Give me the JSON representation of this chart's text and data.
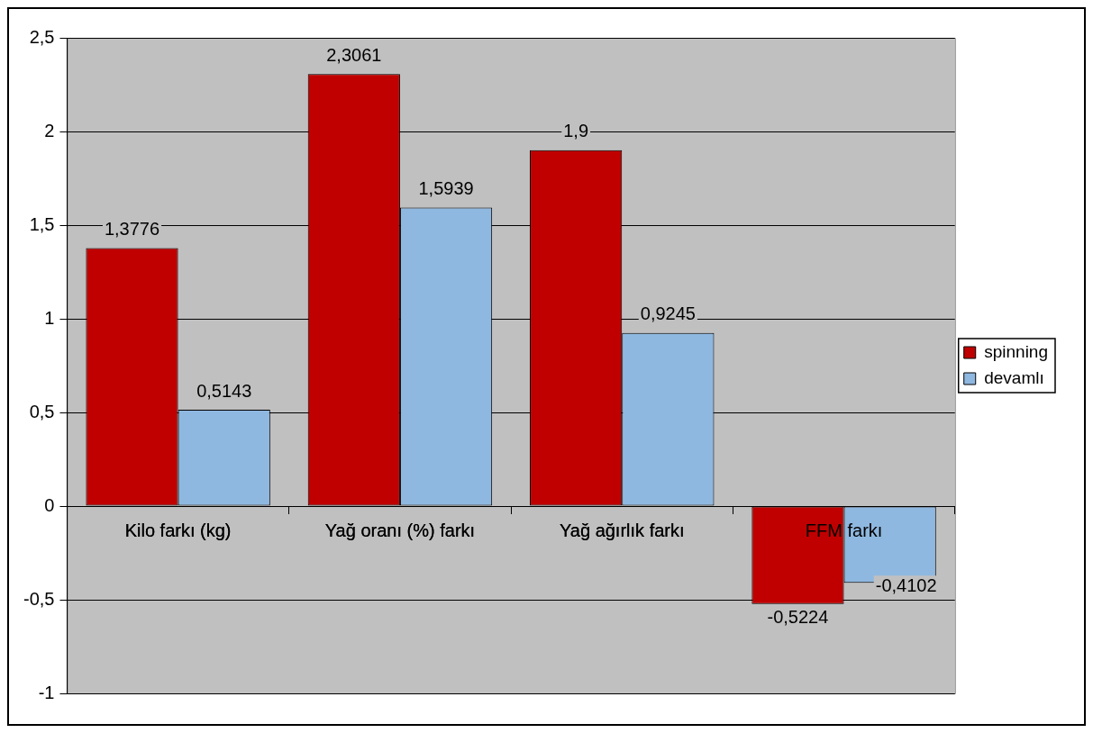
{
  "chart_data": {
    "type": "bar",
    "categories": [
      "Kilo farkı (kg)",
      "Yağ oranı (%) farkı",
      "Yağ ağırlık farkı",
      "FFM farkı"
    ],
    "series": [
      {
        "name": "spinning",
        "color": "#c00000",
        "values": [
          1.3776,
          2.3061,
          1.9,
          -0.5224
        ],
        "value_labels": [
          "1,3776",
          "2,3061",
          "1,9",
          "-0,5224"
        ]
      },
      {
        "name": "devamlı",
        "color": "#8fb8e0",
        "values": [
          0.5143,
          1.5939,
          0.9245,
          -0.4102
        ],
        "value_labels": [
          "0,5143",
          "1,5939",
          "0,9245",
          "-0,4102"
        ]
      }
    ],
    "ylim": [
      -1,
      2.5
    ],
    "yticks": [
      {
        "value": -1,
        "label": "-1"
      },
      {
        "value": -0.5,
        "label": "-0,5"
      },
      {
        "value": 0,
        "label": "0"
      },
      {
        "value": 0.5,
        "label": "0,5"
      },
      {
        "value": 1,
        "label": "1"
      },
      {
        "value": 1.5,
        "label": "1,5"
      },
      {
        "value": 2,
        "label": "2"
      },
      {
        "value": 2.5,
        "label": "2,5"
      }
    ],
    "grid": "y",
    "legend": "right"
  }
}
